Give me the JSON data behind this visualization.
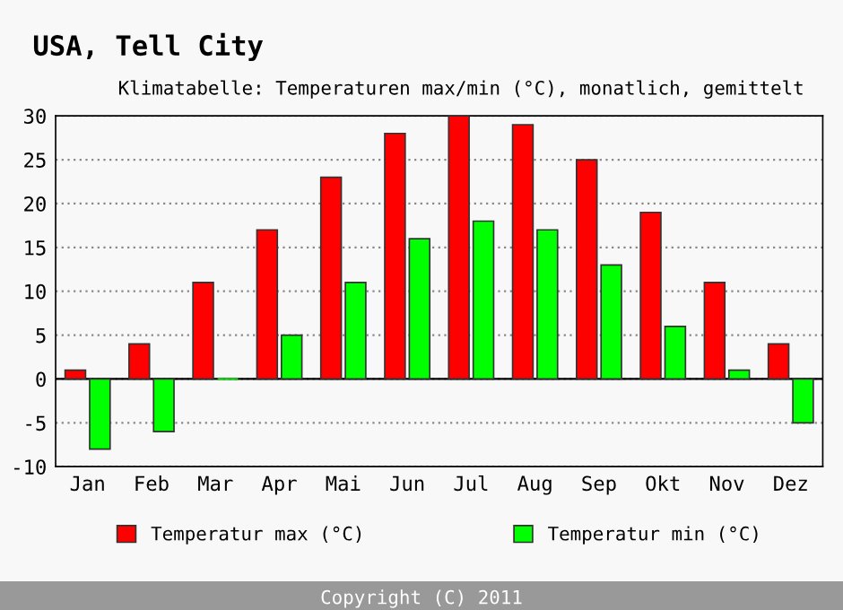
{
  "chart_data": {
    "type": "bar",
    "title": "USA, Tell City",
    "subtitle": "Klimatabelle: Temperaturen max/min (°C), monatlich, gemittelt",
    "categories": [
      "Jan",
      "Feb",
      "Mar",
      "Apr",
      "Mai",
      "Jun",
      "Jul",
      "Aug",
      "Sep",
      "Okt",
      "Nov",
      "Dez"
    ],
    "series": [
      {
        "name": "Temperatur max (°C)",
        "color": "#ff0000",
        "values": [
          1,
          4,
          11,
          17,
          23,
          28,
          30,
          29,
          25,
          19,
          11,
          4
        ]
      },
      {
        "name": "Temperatur min (°C)",
        "color": "#00ff00",
        "values": [
          -8,
          -6,
          0,
          5,
          11,
          16,
          18,
          17,
          13,
          6,
          1,
          -5
        ]
      }
    ],
    "ylim": [
      -10,
      30
    ],
    "yticks": [
      -10,
      -5,
      0,
      5,
      10,
      15,
      20,
      25,
      30
    ],
    "grid": "y",
    "legend": "bottom",
    "annotations": [
      "Copyright (C) 2011"
    ]
  }
}
